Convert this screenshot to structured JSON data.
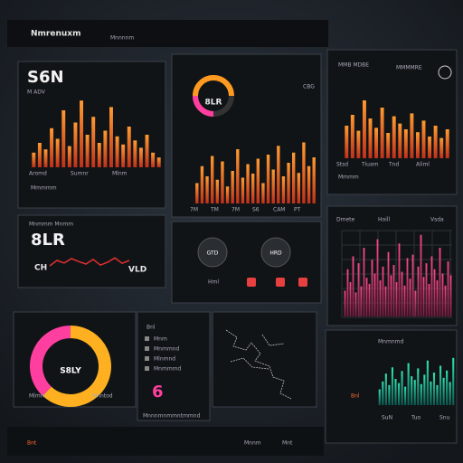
{
  "header": {
    "title": "Nmrenuxm",
    "tab": "Mnnnnm"
  },
  "top_left": {
    "value": "S6N",
    "caption": "M ADV",
    "labels": [
      "Aromd",
      "Sumnr",
      "Mlnm"
    ],
    "footer": "Mmmmm",
    "bars": [
      18,
      30,
      22,
      48,
      35,
      70,
      26,
      55,
      82,
      40,
      62,
      30,
      45,
      74,
      38,
      28,
      50,
      33,
      24,
      40,
      18,
      12
    ]
  },
  "gauge": {
    "value": "8LR",
    "side": "CBG",
    "labels": [
      "7M",
      "TM",
      "7M",
      "S6",
      "CAM",
      "PT"
    ],
    "bars": [
      30,
      55,
      40,
      70,
      35,
      62,
      25,
      48,
      80,
      38,
      58,
      44,
      66,
      30,
      72,
      50,
      85,
      40,
      60,
      75,
      45,
      90,
      55,
      68
    ]
  },
  "top_right": {
    "title": "MMB MDBE",
    "tab": "MMMMRE",
    "labels": [
      "Stsd",
      "Tiuam",
      "Tnd",
      "Aliml"
    ],
    "footer": "Mmmm",
    "bars": [
      45,
      60,
      38,
      80,
      55,
      42,
      70,
      35,
      58,
      48,
      40,
      62,
      36,
      52,
      30,
      45,
      28,
      40
    ]
  },
  "wave": {
    "title": "Mnmmm Mnmm",
    "value": "8LR",
    "left": "CH",
    "right": "VLD",
    "values": [
      40,
      55,
      48,
      60,
      52,
      45,
      58,
      42,
      50,
      62,
      47,
      55
    ]
  },
  "dials": {
    "left": "GTD",
    "right": "HRD",
    "tag": "Hml"
  },
  "pink": {
    "labels": [
      "Dmete",
      "Hoill",
      "Vsda"
    ],
    "bars": [
      30,
      55,
      40,
      70,
      28,
      62,
      35,
      80,
      45,
      38,
      66,
      50,
      90,
      42,
      58,
      35,
      75,
      48,
      60,
      40,
      85,
      52,
      36,
      68,
      44,
      72,
      30,
      58,
      95,
      46,
      62,
      38,
      70,
      55,
      42,
      80,
      50,
      36,
      64,
      48
    ]
  },
  "donut": {
    "value": "S8LY",
    "labels": [
      "Mlmm",
      "Mnntod"
    ],
    "values": [
      62,
      38
    ],
    "colors": [
      "#ffb020",
      "#ff3fa0"
    ]
  },
  "list": {
    "title": "Bnl",
    "items": [
      "Mnm",
      "Mnmmnd",
      "Mlnmnd",
      "Mnmmmd"
    ],
    "big": "6",
    "footer": "Mnnnmnmmntmmnd"
  },
  "teal": {
    "title": "Mnmnmd",
    "tag": "Bnl",
    "labels": [
      "SuN",
      "Tuo",
      "Snu"
    ],
    "bars": [
      30,
      45,
      60,
      38,
      72,
      50,
      42,
      65,
      35,
      80,
      55,
      48,
      70,
      40,
      58,
      85,
      45,
      62,
      38,
      75,
      52,
      66,
      44,
      90
    ]
  },
  "bottom": {
    "items": [
      "Bnt",
      "Mnnm",
      "Mnt"
    ]
  }
}
